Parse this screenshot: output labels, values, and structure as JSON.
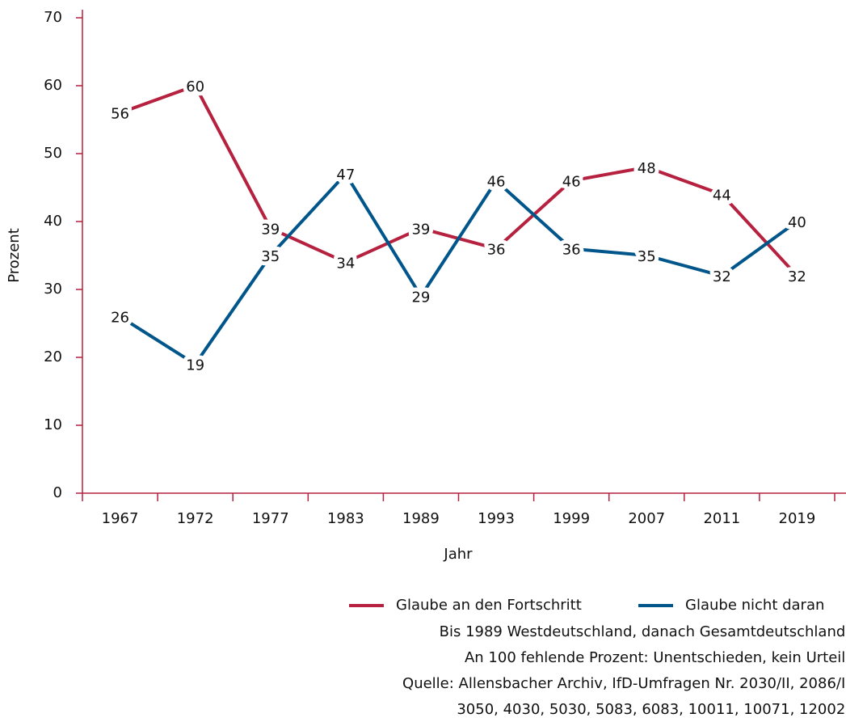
{
  "chart_data": {
    "type": "line",
    "x_label": "Jahr",
    "y_label": "Prozent",
    "categories": [
      "1967",
      "1972",
      "1977",
      "1983",
      "1989",
      "1993",
      "1999",
      "2007",
      "2011",
      "2019"
    ],
    "series": [
      {
        "name": "Glaube an den Fortschritt",
        "color": "#b5213f",
        "values": [
          56,
          60,
          39,
          34,
          39,
          36,
          46,
          48,
          44,
          32
        ]
      },
      {
        "name": "Glaube nicht daran",
        "color": "#00558a",
        "values": [
          26,
          19,
          35,
          47,
          29,
          46,
          36,
          35,
          32,
          40
        ]
      }
    ],
    "ylim": [
      0,
      70
    ],
    "yticks": [
      0,
      10,
      20,
      30,
      40,
      50,
      60,
      70
    ],
    "axis_color": "#b5213f",
    "notes": [
      "Bis 1989 Westdeutschland, danach Gesamtdeutschland.",
      "An 100 fehlende Prozent: Unentschieden, kein Urteil.",
      "Quelle: Allensbacher Archiv, IfD-Umfragen Nr. 2030/II, 2086/I,",
      "3050, 4030, 5030, 5083, 6083, 10011, 10071, 12002."
    ]
  }
}
